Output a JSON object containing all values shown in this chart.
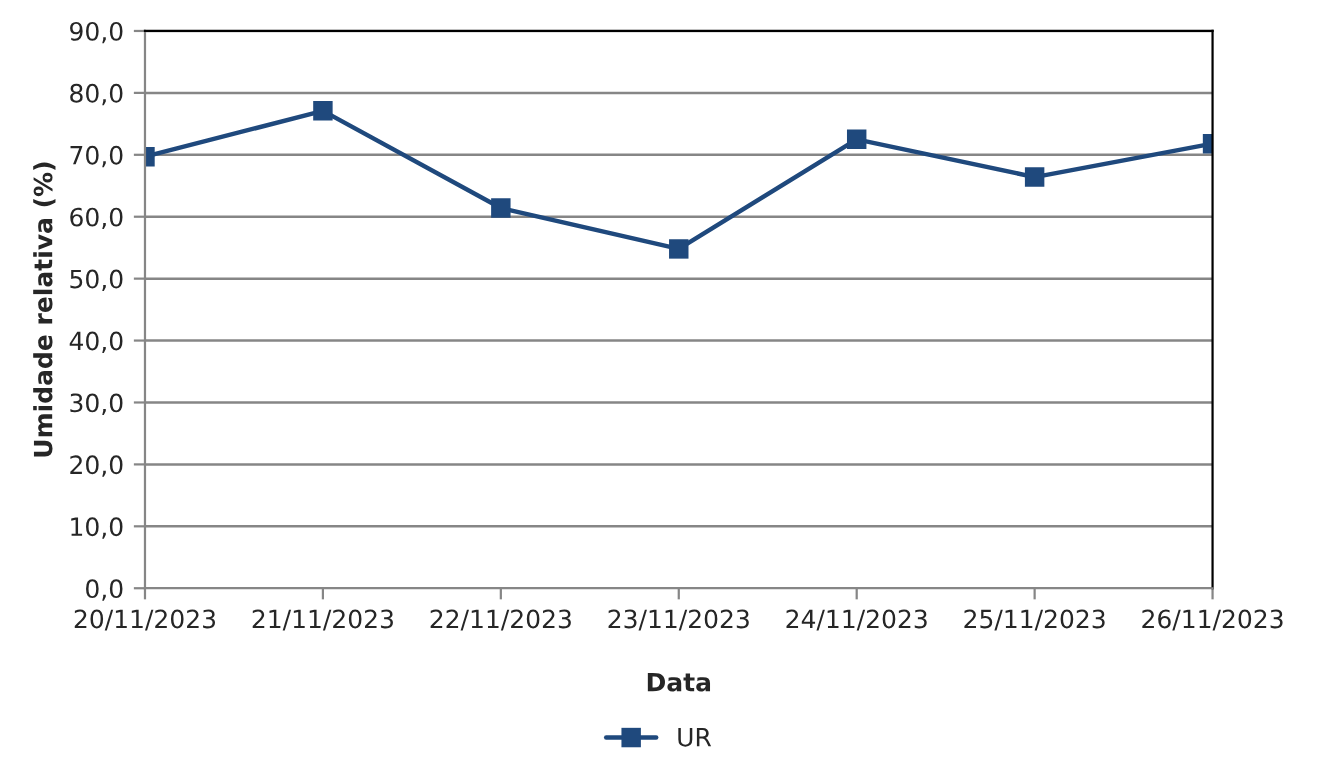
{
  "chart_data": {
    "type": "line",
    "xlabel": "Data",
    "ylabel": "Umidade relativa (%)",
    "categories": [
      "20/11/2023",
      "21/11/2023",
      "22/11/2023",
      "23/11/2023",
      "24/11/2023",
      "25/11/2023",
      "26/11/2023"
    ],
    "series": [
      {
        "name": "UR",
        "color": "#1f497d",
        "values": [
          69.7,
          77.1,
          61.4,
          54.8,
          72.5,
          66.4,
          71.8
        ]
      }
    ],
    "ylim": [
      0,
      90
    ],
    "yticks": [
      {
        "value": 0,
        "label": "0,0"
      },
      {
        "value": 10,
        "label": "10,0"
      },
      {
        "value": 20,
        "label": "20,0"
      },
      {
        "value": 30,
        "label": "30,0"
      },
      {
        "value": 40,
        "label": "40,0"
      },
      {
        "value": 50,
        "label": "50,0"
      },
      {
        "value": 60,
        "label": "60,0"
      },
      {
        "value": 70,
        "label": "70,0"
      },
      {
        "value": 80,
        "label": "80,0"
      },
      {
        "value": 90,
        "label": "90,0"
      }
    ],
    "grid": "y",
    "legend": "bottom",
    "marker": "square",
    "line_style": "solid"
  }
}
